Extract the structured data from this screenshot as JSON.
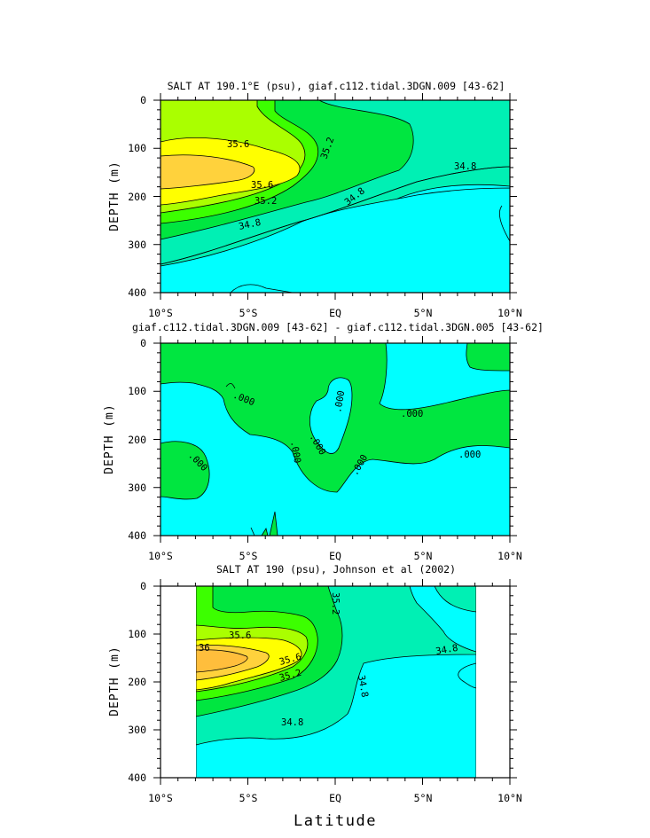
{
  "chart_data": [
    {
      "type": "contour",
      "title": "SALT AT 190.1°E (psu), giaf.c112.tidal.3DGN.009 [43-62]",
      "ylabel": "DEPTH (m)",
      "xlabel": "",
      "x_ticks": [
        "10°S",
        "5°S",
        "EQ",
        "5°N",
        "10°N"
      ],
      "y_ticks": [
        "0",
        "100",
        "200",
        "300",
        "400"
      ],
      "xlim": [
        -10,
        10
      ],
      "ylim": [
        400,
        0
      ],
      "contour_labels": [
        "35.6",
        "35.2",
        "35.6",
        "35.2",
        "34.8",
        "34.8",
        "34.8"
      ]
    },
    {
      "type": "contour",
      "title": "giaf.c112.tidal.3DGN.009 [43-62] - giaf.c112.tidal.3DGN.005 [43-62]",
      "ylabel": "DEPTH (m)",
      "xlabel": "",
      "x_ticks": [
        "10°S",
        "5°S",
        "EQ",
        "5°N",
        "10°N"
      ],
      "y_ticks": [
        "0",
        "100",
        "200",
        "300",
        "400"
      ],
      "xlim": [
        -10,
        10
      ],
      "ylim": [
        400,
        0
      ],
      "contour_labels": [
        ".000",
        ".000",
        ".000",
        ".000",
        ".000",
        ".000",
        ".000"
      ]
    },
    {
      "type": "contour",
      "title": "SALT AT 190 (psu), Johnson et al (2002)",
      "ylabel": "DEPTH (m)",
      "xlabel": "Latitude",
      "x_ticks": [
        "10°S",
        "5°S",
        "EQ",
        "5°N",
        "10°N"
      ],
      "y_ticks": [
        "0",
        "100",
        "200",
        "300",
        "400"
      ],
      "xlim": [
        -10,
        10
      ],
      "ylim": [
        400,
        0
      ],
      "data_xrange": [
        -8,
        8
      ],
      "contour_labels": [
        "35.2",
        "35.6",
        "36",
        "35.6",
        "35.2",
        "34.8",
        "34.8",
        "34.8"
      ]
    }
  ],
  "colors": {
    "cyan": "#00ffff",
    "aqua_green": "#00f0b4",
    "green": "#00e640",
    "lime": "#3cff00",
    "yellow_green": "#aaff00",
    "yellow": "#ffff00",
    "orange": "#ffd23c"
  }
}
